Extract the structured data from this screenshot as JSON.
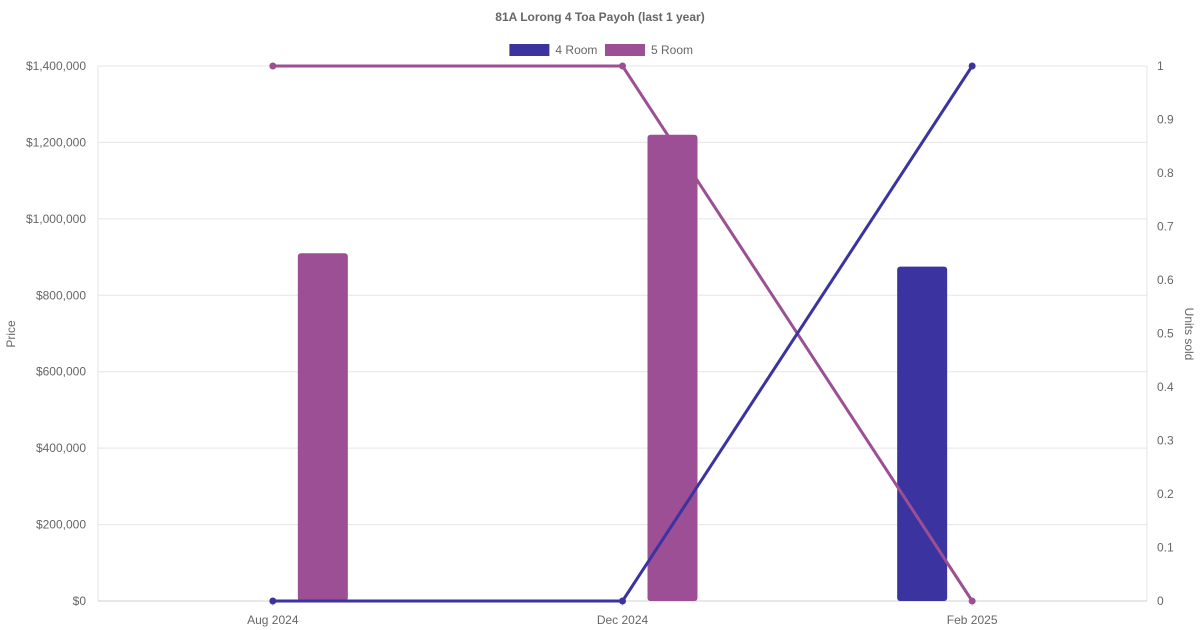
{
  "chart_data": {
    "type": "bar",
    "title": "81A Lorong 4 Toa Payoh (last 1 year)",
    "categories": [
      "Aug 2024",
      "Dec 2024",
      "Feb 2025"
    ],
    "y_left": {
      "label": "Price",
      "range": [
        0,
        1400000
      ],
      "ticks": [
        "$0",
        "$200,000",
        "$400,000",
        "$600,000",
        "$800,000",
        "$1,000,000",
        "$1,200,000",
        "$1,400,000"
      ]
    },
    "y_right": {
      "label": "Units sold",
      "range": [
        0,
        1
      ],
      "ticks": [
        "0",
        "0.1",
        "0.2",
        "0.3",
        "0.4",
        "0.5",
        "0.6",
        "0.7",
        "0.8",
        "0.9",
        "1"
      ]
    },
    "legend": {
      "placement": "top"
    },
    "grid": true,
    "series": [
      {
        "name": "4 Room",
        "color": "#3a33a0",
        "price": [
          null,
          null,
          875000
        ],
        "units_sold": [
          0,
          0,
          1
        ]
      },
      {
        "name": "5 Room",
        "color": "#9c4f94",
        "price": [
          910000,
          1220000,
          null
        ],
        "units_sold": [
          1,
          1,
          0
        ]
      }
    ]
  }
}
